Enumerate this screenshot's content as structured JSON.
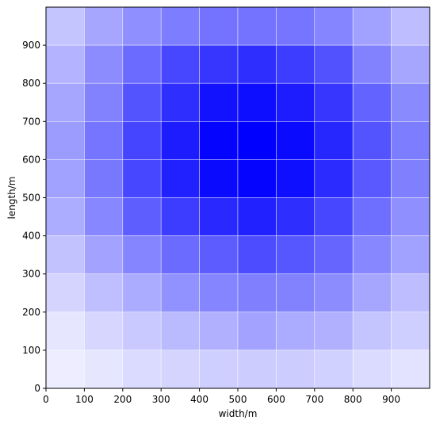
{
  "chart_data": {
    "type": "heatmap",
    "title": "",
    "xlabel": "width/m",
    "ylabel": "length/m",
    "xlim": [
      0,
      1000
    ],
    "ylim": [
      0,
      1000
    ],
    "x_ticks": [
      0,
      100,
      200,
      300,
      400,
      500,
      600,
      700,
      800,
      900
    ],
    "y_ticks": [
      0,
      100,
      200,
      300,
      400,
      500,
      600,
      700,
      800,
      900
    ],
    "cell_size": 100,
    "grid": true,
    "colormap": {
      "low": "#ffffff",
      "high": "#0000ff"
    },
    "rows_top_to_bottom_y_starts": [
      900,
      800,
      700,
      600,
      500,
      400,
      300,
      200,
      100,
      0
    ],
    "columns_x_starts": [
      0,
      100,
      200,
      300,
      400,
      500,
      600,
      700,
      800,
      900
    ],
    "values": [
      [
        0.23,
        0.35,
        0.44,
        0.51,
        0.55,
        0.55,
        0.54,
        0.48,
        0.37,
        0.26
      ],
      [
        0.3,
        0.45,
        0.58,
        0.72,
        0.79,
        0.82,
        0.76,
        0.68,
        0.49,
        0.35
      ],
      [
        0.35,
        0.49,
        0.67,
        0.82,
        0.93,
        0.95,
        0.89,
        0.79,
        0.61,
        0.46
      ],
      [
        0.39,
        0.54,
        0.73,
        0.89,
        0.98,
        1.0,
        0.96,
        0.85,
        0.67,
        0.51
      ],
      [
        0.37,
        0.53,
        0.72,
        0.87,
        0.96,
        0.98,
        0.94,
        0.83,
        0.65,
        0.5
      ],
      [
        0.32,
        0.47,
        0.63,
        0.76,
        0.84,
        0.87,
        0.82,
        0.72,
        0.57,
        0.44
      ],
      [
        0.24,
        0.36,
        0.48,
        0.58,
        0.64,
        0.7,
        0.66,
        0.6,
        0.47,
        0.37
      ],
      [
        0.17,
        0.25,
        0.33,
        0.43,
        0.48,
        0.5,
        0.49,
        0.45,
        0.35,
        0.26
      ],
      [
        0.1,
        0.16,
        0.21,
        0.27,
        0.31,
        0.36,
        0.33,
        0.31,
        0.23,
        0.19
      ],
      [
        0.07,
        0.1,
        0.14,
        0.17,
        0.19,
        0.2,
        0.2,
        0.18,
        0.14,
        0.11
      ]
    ]
  }
}
